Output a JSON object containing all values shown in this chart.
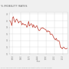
{
  "title": "% MOBILITY RATES",
  "xlabel": "Year",
  "source_text": "Source: Census Bureau, Annual Geographical Mobility Rates, by Type of Move",
  "years": [
    1947,
    1948,
    1949,
    1950,
    1951,
    1952,
    1953,
    1954,
    1955,
    1956,
    1957,
    1958,
    1959,
    1960,
    1961,
    1962,
    1963,
    1964,
    1965,
    1966,
    1967,
    1968,
    1969,
    1970,
    1971,
    1972,
    1973,
    1974,
    1975,
    1976,
    1977,
    1978,
    1979,
    1980,
    1981,
    1982,
    1983,
    1984,
    1985,
    1986,
    1987,
    1988,
    1989,
    1990,
    1991,
    1992,
    1993,
    1994,
    1995,
    1996,
    1997,
    1998,
    1999,
    2000,
    2001,
    2002,
    2003,
    2004,
    2005,
    2006,
    2007,
    2008,
    2009,
    2010,
    2011,
    2012,
    2013,
    2014,
    2015
  ],
  "values": [
    20.0,
    19.5,
    18.5,
    20.9,
    21.2,
    20.0,
    19.5,
    20.3,
    20.5,
    20.0,
    19.3,
    19.7,
    19.8,
    19.8,
    18.7,
    19.2,
    19.0,
    18.7,
    18.9,
    18.7,
    18.0,
    18.5,
    19.8,
    18.4,
    18.7,
    19.1,
    18.9,
    18.0,
    18.8,
    18.1,
    17.9,
    18.3,
    18.5,
    17.7,
    17.1,
    17.0,
    17.3,
    17.8,
    17.7,
    17.9,
    17.6,
    17.5,
    17.4,
    17.1,
    16.6,
    17.0,
    16.7,
    16.8,
    15.8,
    16.0,
    15.9,
    15.5,
    14.9,
    14.5,
    14.2,
    14.7,
    14.0,
    13.9,
    14.0,
    13.5,
    11.9,
    11.9,
    11.5,
    11.9,
    12.0,
    11.7,
    11.5,
    11.5,
    11.7
  ],
  "line_color": "#c0392b",
  "bg_color": "#f0f0f0",
  "plot_bg_color": "#ffffff",
  "grid_color": "#cccccc",
  "title_color": "#666666",
  "tick_color": "#888888",
  "source_color": "#999999",
  "tick_years": [
    1950,
    1960,
    1970,
    1980,
    1990,
    2000,
    2010
  ],
  "ylim": [
    10.0,
    22.5
  ],
  "title_fontsize": 3.0,
  "tick_fontsize": 1.8,
  "source_fontsize": 1.4,
  "xlabel_fontsize": 2.0,
  "linewidth": 0.55
}
